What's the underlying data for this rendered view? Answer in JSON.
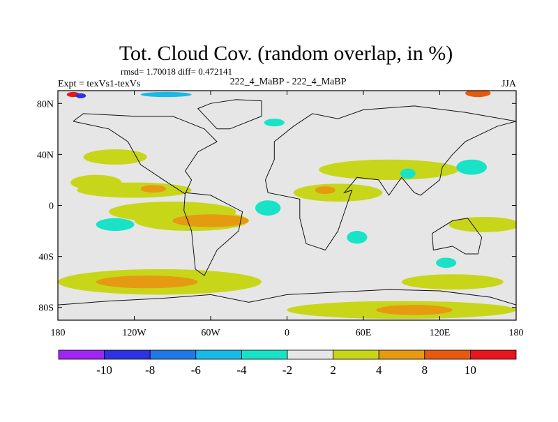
{
  "chart_data": {
    "type": "heatmap",
    "title": "Tot. Cloud Cov. (random overlap, in %)",
    "stats_text": "rmsd= 1.70018 diff= 0.472141",
    "left_label": "Expt = texVs1-texVs",
    "center_label": "222_4_MaBP - 222_4_MaBP",
    "season_label": "JJA",
    "xlim": [
      -180,
      180
    ],
    "ylim": [
      -90,
      90
    ],
    "x_ticks": [
      {
        "value": -180,
        "label": "180"
      },
      {
        "value": -120,
        "label": "120W"
      },
      {
        "value": -60,
        "label": "60W"
      },
      {
        "value": 0,
        "label": "0"
      },
      {
        "value": 60,
        "label": "60E"
      },
      {
        "value": 120,
        "label": "120E"
      },
      {
        "value": 180,
        "label": "180"
      }
    ],
    "y_ticks": [
      {
        "value": 80,
        "label": "80N"
      },
      {
        "value": 40,
        "label": "40N"
      },
      {
        "value": 0,
        "label": "0"
      },
      {
        "value": -40,
        "label": "40S"
      },
      {
        "value": -80,
        "label": "80S"
      }
    ],
    "colorbar": {
      "levels": [
        "-10",
        "-8",
        "-6",
        "-4",
        "-2",
        "2",
        "4",
        "8",
        "10"
      ],
      "colors": [
        "#9d26f0",
        "#2d33e0",
        "#2277e6",
        "#19b9e6",
        "#19e3c6",
        "#e6e6e6",
        "#c8d619",
        "#e69a12",
        "#e65a10",
        "#e8151c"
      ]
    },
    "regions": [
      {
        "category": "2 to 4",
        "color": "#c8d619",
        "lon_center": -150,
        "lat_center": 18,
        "lon_radius": 20,
        "lat_radius": 6
      },
      {
        "category": "2 to 4",
        "color": "#c8d619",
        "lon_center": -120,
        "lat_center": 12,
        "lon_radius": 45,
        "lat_radius": 6
      },
      {
        "category": "2 to 4",
        "color": "#c8d619",
        "lon_center": -90,
        "lat_center": -5,
        "lon_radius": 50,
        "lat_radius": 8
      },
      {
        "category": "2 to 4",
        "color": "#c8d619",
        "lon_center": -75,
        "lat_center": -12,
        "lon_radius": 45,
        "lat_radius": 8
      },
      {
        "category": "2 to 4",
        "color": "#c8d619",
        "lon_center": -135,
        "lat_center": 38,
        "lon_radius": 25,
        "lat_radius": 6
      },
      {
        "category": "2 to 4",
        "color": "#c8d619",
        "lon_center": 40,
        "lat_center": 10,
        "lon_radius": 35,
        "lat_radius": 7
      },
      {
        "category": "2 to 4",
        "color": "#c8d619",
        "lon_center": 80,
        "lat_center": 28,
        "lon_radius": 55,
        "lat_radius": 8
      },
      {
        "category": "2 to 4",
        "color": "#c8d619",
        "lon_center": 155,
        "lat_center": -15,
        "lon_radius": 28,
        "lat_radius": 6
      },
      {
        "category": "2 to 4",
        "color": "#c8d619",
        "lon_center": -100,
        "lat_center": -60,
        "lon_radius": 80,
        "lat_radius": 10
      },
      {
        "category": "2 to 4",
        "color": "#c8d619",
        "lon_center": 90,
        "lat_center": -82,
        "lon_radius": 90,
        "lat_radius": 7
      },
      {
        "category": "2 to 4",
        "color": "#c8d619",
        "lon_center": 130,
        "lat_center": -60,
        "lon_radius": 40,
        "lat_radius": 6
      },
      {
        "category": "4 to 8",
        "color": "#e69a12",
        "lon_center": -60,
        "lat_center": -12,
        "lon_radius": 30,
        "lat_radius": 5
      },
      {
        "category": "4 to 8",
        "color": "#e69a12",
        "lon_center": -110,
        "lat_center": -60,
        "lon_radius": 40,
        "lat_radius": 5
      },
      {
        "category": "4 to 8",
        "color": "#e69a12",
        "lon_center": -105,
        "lat_center": 13,
        "lon_radius": 10,
        "lat_radius": 3
      },
      {
        "category": "4 to 8",
        "color": "#e69a12",
        "lon_center": 30,
        "lat_center": 12,
        "lon_radius": 8,
        "lat_radius": 3
      },
      {
        "category": "4 to 8",
        "color": "#e69a12",
        "lon_center": 100,
        "lat_center": -82,
        "lon_radius": 30,
        "lat_radius": 4
      },
      {
        "category": "-4 to -2",
        "color": "#19e3c6",
        "lon_center": -135,
        "lat_center": -15,
        "lon_radius": 15,
        "lat_radius": 5
      },
      {
        "category": "-4 to -2",
        "color": "#19e3c6",
        "lon_center": -15,
        "lat_center": -2,
        "lon_radius": 10,
        "lat_radius": 6
      },
      {
        "category": "-4 to -2",
        "color": "#19e3c6",
        "lon_center": 55,
        "lat_center": -25,
        "lon_radius": 8,
        "lat_radius": 5
      },
      {
        "category": "-4 to -2",
        "color": "#19e3c6",
        "lon_center": 145,
        "lat_center": 30,
        "lon_radius": 12,
        "lat_radius": 6
      },
      {
        "category": "-4 to -2",
        "color": "#19e3c6",
        "lon_center": 125,
        "lat_center": -45,
        "lon_radius": 8,
        "lat_radius": 4
      },
      {
        "category": "-4 to -2",
        "color": "#19e3c6",
        "lon_center": -10,
        "lat_center": 65,
        "lon_radius": 8,
        "lat_radius": 3
      },
      {
        "category": "-4 to -2",
        "color": "#19e3c6",
        "lon_center": 95,
        "lat_center": 25,
        "lon_radius": 6,
        "lat_radius": 4
      },
      {
        "category": "8 to 10",
        "color": "#e65a10",
        "lon_center": 150,
        "lat_center": 88,
        "lon_radius": 10,
        "lat_radius": 3
      },
      {
        "category": "10 and above",
        "color": "#e8151c",
        "lon_center": -168,
        "lat_center": 87,
        "lon_radius": 5,
        "lat_radius": 2
      },
      {
        "category": "-6 to -4",
        "color": "#19b9e6",
        "lon_center": -95,
        "lat_center": 87,
        "lon_radius": 20,
        "lat_radius": 2
      },
      {
        "category": "-10 to -8",
        "color": "#2d33e0",
        "lon_center": -162,
        "lat_center": 86,
        "lon_radius": 4,
        "lat_radius": 2
      }
    ],
    "continents": [
      {
        "name": "north-america-coast",
        "points": [
          [
            -168,
            66
          ],
          [
            -140,
            60
          ],
          [
            -125,
            50
          ],
          [
            -115,
            32
          ],
          [
            -97,
            20
          ],
          [
            -80,
            9
          ],
          [
            -75,
            20
          ],
          [
            -80,
            27
          ],
          [
            -70,
            42
          ],
          [
            -55,
            50
          ],
          [
            -65,
            60
          ],
          [
            -90,
            70
          ],
          [
            -120,
            70
          ],
          [
            -160,
            72
          ],
          [
            -168,
            66
          ]
        ]
      },
      {
        "name": "south-america-coast",
        "points": [
          [
            -80,
            10
          ],
          [
            -60,
            8
          ],
          [
            -35,
            -5
          ],
          [
            -38,
            -20
          ],
          [
            -55,
            -35
          ],
          [
            -65,
            -55
          ],
          [
            -72,
            -50
          ],
          [
            -75,
            -20
          ],
          [
            -81,
            -4
          ],
          [
            -80,
            10
          ]
        ]
      },
      {
        "name": "eurasia-africa-coast",
        "points": [
          [
            -10,
            36
          ],
          [
            -17,
            20
          ],
          [
            -15,
            10
          ],
          [
            10,
            5
          ],
          [
            10,
            -10
          ],
          [
            15,
            -30
          ],
          [
            30,
            -35
          ],
          [
            40,
            -20
          ],
          [
            51,
            12
          ],
          [
            45,
            10
          ],
          [
            55,
            22
          ],
          [
            72,
            20
          ],
          [
            80,
            8
          ],
          [
            90,
            22
          ],
          [
            100,
            10
          ],
          [
            105,
            8
          ],
          [
            120,
            20
          ],
          [
            122,
            30
          ],
          [
            130,
            40
          ],
          [
            140,
            50
          ],
          [
            165,
            62
          ],
          [
            180,
            66
          ],
          [
            140,
            73
          ],
          [
            100,
            78
          ],
          [
            60,
            75
          ],
          [
            40,
            68
          ],
          [
            20,
            72
          ],
          [
            5,
            62
          ],
          [
            -10,
            50
          ],
          [
            -10,
            36
          ]
        ]
      },
      {
        "name": "australia-coast",
        "points": [
          [
            114,
            -22
          ],
          [
            130,
            -12
          ],
          [
            142,
            -10
          ],
          [
            153,
            -25
          ],
          [
            150,
            -38
          ],
          [
            140,
            -38
          ],
          [
            130,
            -32
          ],
          [
            115,
            -35
          ],
          [
            114,
            -22
          ]
        ]
      },
      {
        "name": "greenland-coast",
        "points": [
          [
            -55,
            60
          ],
          [
            -45,
            60
          ],
          [
            -20,
            70
          ],
          [
            -20,
            82
          ],
          [
            -40,
            83
          ],
          [
            -60,
            80
          ],
          [
            -70,
            76
          ],
          [
            -55,
            60
          ]
        ]
      },
      {
        "name": "antarctica-coast",
        "points": [
          [
            -180,
            -78
          ],
          [
            -140,
            -75
          ],
          [
            -100,
            -73
          ],
          [
            -60,
            -70
          ],
          [
            -30,
            -76
          ],
          [
            0,
            -70
          ],
          [
            40,
            -68
          ],
          [
            80,
            -66
          ],
          [
            120,
            -67
          ],
          [
            160,
            -72
          ],
          [
            180,
            -78
          ]
        ]
      }
    ]
  }
}
